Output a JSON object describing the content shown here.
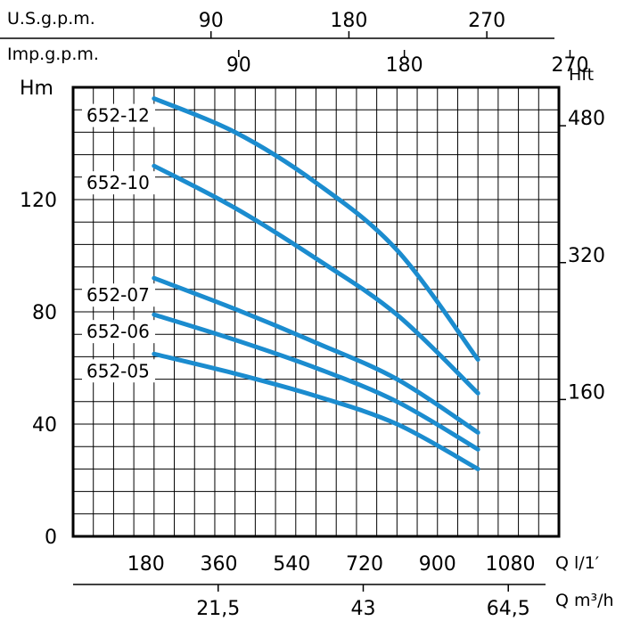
{
  "colors": {
    "curve": "#1b8ccf",
    "grid": "#000000",
    "frame": "#000000",
    "background": "#ffffff"
  },
  "chart_data": {
    "type": "line",
    "grid": true,
    "x": {
      "label": "Q l/1′",
      "unit_label": "Q l/1′",
      "ticks": [
        180,
        360,
        540,
        720,
        900,
        1080
      ],
      "range": [
        0,
        1200
      ]
    },
    "y": {
      "label": "Hm",
      "ticks": [
        0,
        40,
        80,
        120
      ],
      "range": [
        0,
        160
      ]
    },
    "y_right": {
      "label": "Hft",
      "ticks": [
        160,
        320,
        480
      ]
    },
    "x_top_usgpm": {
      "label": "U.S.g.p.m.",
      "ticks": [
        90,
        180,
        270
      ]
    },
    "x_top_impgpm": {
      "label": "Imp.g.p.m.",
      "ticks": [
        90,
        180,
        270
      ]
    },
    "x_bottom_m3h": {
      "label": "Q m³/h",
      "ticks": [
        "21,5",
        "43",
        "64,5"
      ]
    },
    "series": [
      {
        "name": "652-12",
        "x": [
          200,
          400,
          600,
          800,
          1000
        ],
        "y": [
          156,
          144,
          126,
          102,
          63
        ]
      },
      {
        "name": "652-10",
        "x": [
          200,
          400,
          600,
          800,
          1000
        ],
        "y": [
          132,
          117,
          99,
          79,
          51
        ]
      },
      {
        "name": "652-07",
        "x": [
          200,
          400,
          600,
          800,
          1000
        ],
        "y": [
          92,
          81,
          69,
          56,
          37
        ]
      },
      {
        "name": "652-06",
        "x": [
          200,
          400,
          600,
          800,
          1000
        ],
        "y": [
          79,
          70,
          60,
          48,
          31
        ]
      },
      {
        "name": "652-05",
        "x": [
          200,
          400,
          600,
          800,
          1000
        ],
        "y": [
          65,
          58,
          50,
          40,
          24
        ]
      }
    ]
  }
}
